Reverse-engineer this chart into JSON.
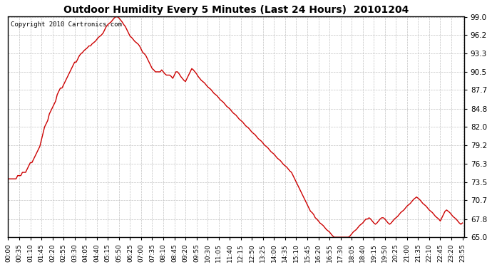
{
  "title": "Outdoor Humidity Every 5 Minutes (Last 24 Hours)  20101204",
  "copyright": "Copyright 2010 Cartronics.com",
  "line_color": "#cc0000",
  "bg_color": "#ffffff",
  "grid_color": "#bbbbbb",
  "yticks": [
    65.0,
    67.8,
    70.7,
    73.5,
    76.3,
    79.2,
    82.0,
    84.8,
    87.7,
    90.5,
    93.3,
    96.2,
    99.0
  ],
  "ymin": 65.0,
  "ymax": 99.0,
  "xtick_labels": [
    "00:00",
    "00:35",
    "01:10",
    "01:45",
    "02:20",
    "02:55",
    "03:30",
    "04:05",
    "04:40",
    "05:15",
    "05:50",
    "06:25",
    "07:00",
    "07:35",
    "08:10",
    "08:45",
    "09:20",
    "09:55",
    "10:30",
    "11:05",
    "11:40",
    "12:15",
    "12:50",
    "13:25",
    "14:00",
    "14:35",
    "15:10",
    "15:45",
    "16:20",
    "16:55",
    "17:30",
    "18:05",
    "18:40",
    "19:15",
    "19:50",
    "20:25",
    "21:00",
    "21:35",
    "22:10",
    "22:45",
    "23:20",
    "23:55"
  ],
  "keypoints_minutes": [
    0,
    5,
    10,
    15,
    20,
    25,
    30,
    35,
    40,
    45,
    50,
    55,
    60,
    65,
    70,
    75,
    80,
    85,
    90,
    95,
    100,
    105,
    110,
    115,
    120,
    125,
    130,
    135,
    140,
    145,
    150,
    155,
    160,
    165,
    170,
    175,
    180,
    185,
    190,
    195,
    200,
    205,
    210,
    215,
    220,
    225,
    230,
    235,
    240,
    245,
    250,
    255,
    260,
    265,
    270,
    275,
    280,
    285,
    290,
    295,
    300,
    305,
    310,
    315,
    320,
    325,
    330,
    335,
    340,
    345,
    350,
    355,
    360,
    365,
    370,
    375,
    380,
    385,
    390,
    395,
    400,
    405,
    410,
    415,
    420,
    425,
    430,
    435,
    440,
    445,
    450,
    455,
    460,
    465,
    470,
    475,
    480,
    485,
    490,
    495,
    500,
    505,
    510,
    515,
    520,
    525,
    530,
    535,
    540,
    545,
    550,
    555,
    560,
    565,
    570,
    575,
    580,
    585,
    590,
    595,
    600,
    605,
    610,
    615,
    620,
    625,
    630,
    635,
    640,
    645,
    650,
    655,
    660,
    665,
    670,
    675,
    680,
    685,
    690,
    695,
    700,
    705,
    710,
    715,
    720,
    725,
    730,
    735,
    740,
    745,
    750,
    755,
    760,
    765,
    770,
    775,
    780,
    785,
    790,
    795,
    800,
    805,
    810,
    815,
    820,
    825,
    830,
    835,
    840,
    845,
    850,
    855,
    860,
    865,
    870,
    875,
    880,
    885,
    890,
    895,
    900,
    905,
    910,
    915,
    920,
    925,
    930,
    935,
    940,
    945,
    950,
    955,
    960,
    965,
    970,
    975,
    980,
    985,
    990,
    995,
    1000,
    1005,
    1010,
    1015,
    1020,
    1025,
    1030,
    1035,
    1040,
    1045,
    1050,
    1055,
    1060,
    1065,
    1070,
    1075,
    1080,
    1085,
    1090,
    1095,
    1100,
    1105,
    1110,
    1115,
    1120,
    1125,
    1130,
    1135,
    1140,
    1145,
    1150,
    1155,
    1160,
    1165,
    1170,
    1175,
    1180,
    1185,
    1190,
    1195,
    1200,
    1205,
    1210,
    1215,
    1220,
    1225,
    1230,
    1235,
    1240,
    1245,
    1250,
    1255,
    1260,
    1265,
    1270,
    1275,
    1280,
    1285,
    1290,
    1295,
    1300,
    1305,
    1310,
    1315,
    1320,
    1325,
    1330,
    1335,
    1340,
    1345,
    1350,
    1355,
    1360,
    1365,
    1370,
    1375,
    1380,
    1385,
    1390,
    1395,
    1400,
    1405,
    1410,
    1415,
    1420,
    1425,
    1430,
    1435
  ],
  "keypoints_humidity": [
    74.0,
    74.0,
    74.0,
    74.0,
    74.0,
    74.0,
    74.5,
    74.5,
    74.5,
    75.0,
    75.0,
    75.0,
    75.5,
    76.0,
    76.5,
    76.5,
    77.0,
    77.5,
    78.0,
    78.5,
    79.0,
    80.0,
    81.0,
    82.0,
    82.5,
    83.0,
    84.0,
    84.5,
    85.0,
    85.5,
    86.0,
    87.0,
    87.5,
    88.0,
    88.0,
    88.5,
    89.0,
    89.5,
    90.0,
    90.5,
    91.0,
    91.5,
    92.0,
    92.0,
    92.5,
    93.0,
    93.3,
    93.5,
    93.8,
    94.0,
    94.2,
    94.5,
    94.5,
    94.8,
    95.0,
    95.2,
    95.5,
    95.8,
    96.0,
    96.2,
    96.5,
    97.0,
    97.5,
    97.8,
    98.0,
    98.2,
    98.5,
    98.8,
    99.0,
    99.0,
    98.8,
    98.5,
    98.2,
    97.8,
    97.5,
    97.0,
    96.5,
    96.0,
    95.8,
    95.5,
    95.2,
    95.0,
    94.8,
    94.5,
    94.0,
    93.5,
    93.3,
    93.0,
    92.5,
    92.0,
    91.5,
    91.0,
    90.8,
    90.5,
    90.5,
    90.5,
    90.5,
    90.8,
    90.5,
    90.2,
    90.0,
    90.0,
    90.0,
    89.8,
    89.5,
    90.0,
    90.5,
    90.5,
    90.2,
    89.8,
    89.5,
    89.2,
    89.0,
    89.5,
    90.0,
    90.5,
    91.0,
    90.8,
    90.5,
    90.2,
    89.8,
    89.5,
    89.2,
    89.0,
    88.8,
    88.5,
    88.2,
    88.0,
    87.8,
    87.5,
    87.2,
    87.0,
    86.8,
    86.5,
    86.2,
    86.0,
    85.8,
    85.5,
    85.2,
    85.0,
    84.8,
    84.5,
    84.2,
    84.0,
    83.8,
    83.5,
    83.2,
    83.0,
    82.8,
    82.5,
    82.2,
    82.0,
    81.8,
    81.5,
    81.2,
    81.0,
    80.8,
    80.5,
    80.2,
    80.0,
    79.8,
    79.5,
    79.2,
    79.0,
    78.8,
    78.5,
    78.2,
    78.0,
    77.8,
    77.5,
    77.2,
    77.0,
    76.8,
    76.5,
    76.2,
    76.0,
    75.8,
    75.5,
    75.2,
    75.0,
    74.5,
    74.0,
    73.5,
    73.0,
    72.5,
    72.0,
    71.5,
    71.0,
    70.5,
    70.0,
    69.5,
    69.0,
    68.8,
    68.5,
    68.0,
    67.8,
    67.5,
    67.2,
    67.0,
    66.8,
    66.5,
    66.2,
    66.0,
    65.8,
    65.5,
    65.2,
    65.0,
    65.0,
    65.0,
    65.0,
    65.0,
    65.0,
    65.0,
    65.0,
    65.0,
    65.0,
    65.2,
    65.5,
    65.8,
    66.0,
    66.2,
    66.5,
    66.8,
    67.0,
    67.2,
    67.5,
    67.8,
    67.8,
    68.0,
    67.8,
    67.5,
    67.2,
    67.0,
    67.2,
    67.5,
    67.8,
    68.0,
    68.0,
    67.8,
    67.5,
    67.2,
    67.0,
    67.2,
    67.5,
    67.8,
    68.0,
    68.2,
    68.5,
    68.8,
    69.0,
    69.2,
    69.5,
    69.8,
    70.0,
    70.2,
    70.5,
    70.8,
    71.0,
    71.2,
    71.0,
    70.8,
    70.5,
    70.2,
    70.0,
    69.8,
    69.5,
    69.2,
    69.0,
    68.8,
    68.5,
    68.2,
    68.0,
    67.8,
    67.5,
    68.0,
    68.5,
    69.0,
    69.2,
    69.0,
    68.8,
    68.5,
    68.2,
    68.0,
    67.8,
    67.5,
    67.2,
    67.0,
    67.2
  ]
}
